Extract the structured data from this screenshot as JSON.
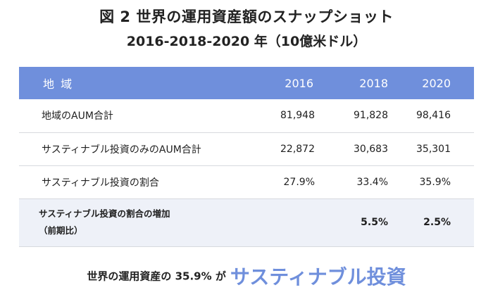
{
  "title": {
    "line1": "図 2 世界の運用資産額のスナップショット",
    "line2": "2016-2018-2020 年（10億米ドル）"
  },
  "table": {
    "header": {
      "label": "地 域",
      "y1": "2016",
      "y2": "2018",
      "y3": "2020"
    },
    "rows": [
      {
        "label": "地域のAUM合計",
        "y1": "81,948",
        "y2": "91,828",
        "y3": "98,416"
      },
      {
        "label": "サスティナブル投資のみのAUM合計",
        "y1": "22,872",
        "y2": "30,683",
        "y3": "35,301"
      },
      {
        "label": "サスティナブル投資の割合",
        "y1": "27.9%",
        "y2": "33.4%",
        "y3": "35.9%"
      }
    ],
    "increase_row": {
      "label_line1": "サスティナブル投資の割合の増加",
      "label_line2": "（前期比）",
      "y1": "",
      "y2": "5.5%",
      "y3": "2.5%"
    }
  },
  "footer": {
    "lead": "世界の運用資産の 35.9% が",
    "highlight": "サスティナブル投資"
  }
}
